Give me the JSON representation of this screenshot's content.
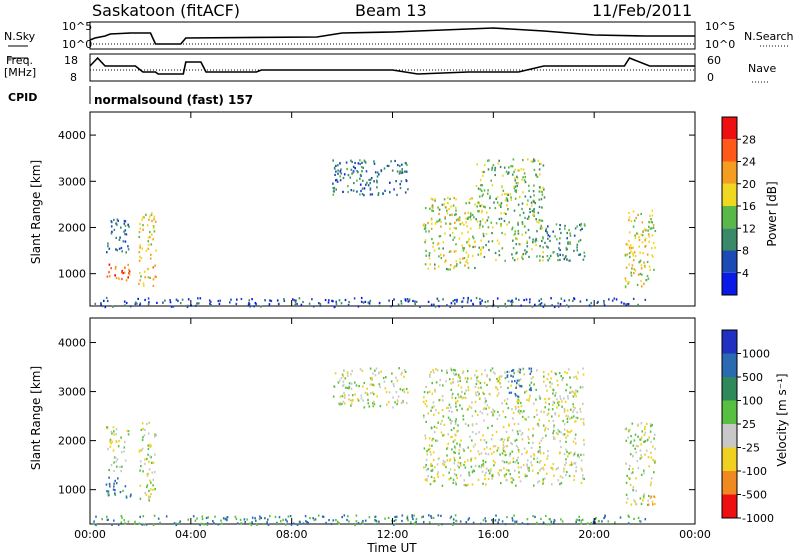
{
  "header": {
    "site": "Saskatoon (fitACF)",
    "beam": "Beam 13",
    "date": "11/Feb/2011"
  },
  "noise_panel": {
    "left_label": "N.Sky",
    "right_label": "N.Search",
    "left_ticks": [
      "10^5",
      "10^0"
    ],
    "right_ticks": [
      "10^5",
      "10^0"
    ]
  },
  "freq_panel": {
    "left_label_1": "Freq.",
    "left_label_2": "[MHz]",
    "left_ticks": [
      "18",
      "8"
    ],
    "right_label": "Nave",
    "right_ticks": [
      "60",
      "0"
    ]
  },
  "cpid": {
    "label": "CPID",
    "text": "normalsound (fast) 157"
  },
  "power_panel": {
    "ylabel": "Slant Range [km]",
    "yticks": [
      "4000",
      "3000",
      "2000",
      "1000"
    ],
    "colorbar_label": "Power [dB]",
    "colorbar_ticks": [
      "28",
      "24",
      "20",
      "16",
      "12",
      "8",
      "4"
    ],
    "colors": [
      "#0a1ae6",
      "#1c4ab4",
      "#3a8a6a",
      "#5ab84a",
      "#f0d820",
      "#f59d20",
      "#ff5a1a",
      "#ee1010"
    ]
  },
  "velocity_panel": {
    "ylabel": "Slant Range [km]",
    "yticks": [
      "4000",
      "3000",
      "2000",
      "1000"
    ],
    "colorbar_label": "Velocity [m s⁻¹]",
    "colorbar_ticks": [
      "1000",
      "500",
      "100",
      "25",
      "-25",
      "-100",
      "-500",
      "-1000"
    ],
    "colors": [
      "#2030c0",
      "#2a6ab0",
      "#2e8a5a",
      "#58c040",
      "#c8c8c8",
      "#f0d020",
      "#f08a20",
      "#ee1010"
    ]
  },
  "xaxis": {
    "label": "Time UT",
    "ticks": [
      "00:00",
      "04:00",
      "08:00",
      "12:00",
      "16:00",
      "20:00",
      "00:00"
    ]
  },
  "chart_data": {
    "type": "heatmap",
    "title": "Saskatoon (fitACF)",
    "xlabel": "Time UT",
    "ylabel": "Slant Range [km]",
    "xlim": [
      0,
      24
    ],
    "ylim": [
      300,
      4500
    ],
    "series": [
      {
        "name": "Power [dB]",
        "regions": [
          {
            "t0": 0.6,
            "t1": 1.6,
            "r0": 850,
            "r1": 1250,
            "value": 26
          },
          {
            "t0": 0.6,
            "t1": 1.6,
            "r0": 1400,
            "r1": 2200,
            "value": 8
          },
          {
            "t0": 1.9,
            "t1": 2.6,
            "r0": 1300,
            "r1": 2400,
            "value": 18
          },
          {
            "t0": 1.9,
            "t1": 2.6,
            "r0": 750,
            "r1": 1200,
            "value": 20
          },
          {
            "t0": 9.6,
            "t1": 12.6,
            "r0": 2700,
            "r1": 3500,
            "value": 8
          },
          {
            "t0": 13.2,
            "t1": 15.3,
            "r0": 1100,
            "r1": 2700,
            "value": 16
          },
          {
            "t0": 15.3,
            "t1": 18.0,
            "r0": 1300,
            "r1": 3500,
            "value": 14
          },
          {
            "t0": 18.0,
            "t1": 19.6,
            "r0": 1300,
            "r1": 2100,
            "value": 10
          },
          {
            "t0": 21.2,
            "t1": 22.4,
            "r0": 700,
            "r1": 2400,
            "value": 18
          },
          {
            "t0": 0.0,
            "t1": 22.0,
            "r0": 300,
            "r1": 500,
            "value": 6
          }
        ]
      },
      {
        "name": "Velocity [m s⁻¹]",
        "regions": [
          {
            "t0": 0.6,
            "t1": 1.6,
            "r0": 850,
            "r1": 1300,
            "value": 150
          },
          {
            "t0": 0.6,
            "t1": 1.6,
            "r0": 1400,
            "r1": 2300,
            "value": 0
          },
          {
            "t0": 1.9,
            "t1": 2.6,
            "r0": 800,
            "r1": 2400,
            "value": 0
          },
          {
            "t0": 9.6,
            "t1": 12.6,
            "r0": 2700,
            "r1": 3500,
            "value": 0
          },
          {
            "t0": 13.2,
            "t1": 19.6,
            "r0": 1100,
            "r1": 3500,
            "value": 0
          },
          {
            "t0": 16.5,
            "t1": 17.5,
            "r0": 2900,
            "r1": 3500,
            "value": 300
          },
          {
            "t0": 21.2,
            "t1": 22.4,
            "r0": 700,
            "r1": 2400,
            "value": 0
          },
          {
            "t0": 22.0,
            "t1": 22.4,
            "r0": 700,
            "r1": 900,
            "value": -200
          },
          {
            "t0": 0.0,
            "t1": 22.0,
            "r0": 300,
            "r1": 500,
            "value": 100
          }
        ]
      }
    ]
  }
}
